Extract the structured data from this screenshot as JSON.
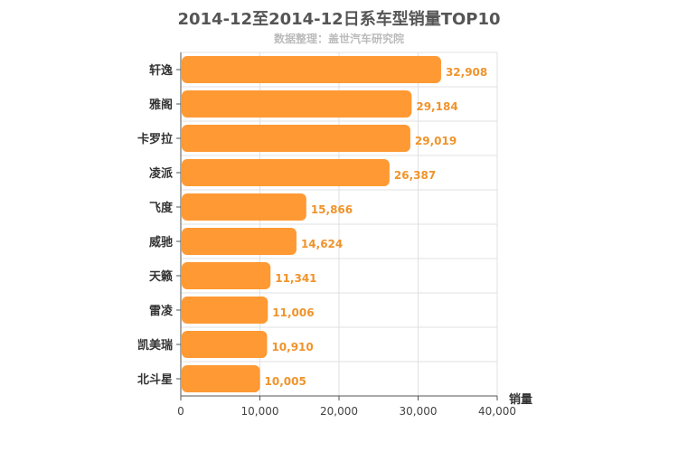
{
  "title": "2014-12至2014-12日系车型销量TOP10",
  "subtitle": "数据整理：盖世汽车研究院",
  "colors": {
    "bar": "#ff9933",
    "value_label": "#f0932b",
    "grid": "#e0e0e0"
  },
  "chart_data": {
    "type": "bar",
    "orientation": "horizontal",
    "title": "2014-12至2014-12日系车型销量TOP10",
    "subtitle": "数据整理：盖世汽车研究院",
    "categories": [
      "轩逸",
      "雅阁",
      "卡罗拉",
      "凌派",
      "飞度",
      "威驰",
      "天籁",
      "雷凌",
      "凯美瑞",
      "北斗星"
    ],
    "values": [
      32908,
      29184,
      29019,
      26387,
      15866,
      14624,
      11341,
      11006,
      10910,
      10005
    ],
    "value_labels": [
      "32,908",
      "29,184",
      "29,019",
      "26,387",
      "15,866",
      "14,624",
      "11,341",
      "11,006",
      "10,910",
      "10,005"
    ],
    "xlim": [
      0,
      40000
    ],
    "xticks": [
      0,
      10000,
      20000,
      30000,
      40000
    ],
    "xtick_labels": [
      "0",
      "10,000",
      "20,000",
      "30,000",
      "40,000"
    ],
    "xlabel": "销量",
    "ylabel": "",
    "grid": true,
    "legend": "none"
  }
}
